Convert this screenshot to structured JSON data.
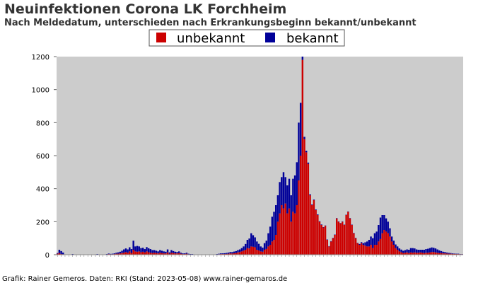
{
  "chart_data": {
    "type": "bar",
    "stacked": true,
    "title": "Neuinfektionen Corona LK Forchheim",
    "subtitle": "Nach Meldedatum, unterschieden nach Erkrankungsbeginn bekannt/unbekannt",
    "xlabel": "",
    "ylabel": "",
    "ylim": [
      0,
      1200
    ],
    "yticks": [
      0,
      200,
      400,
      600,
      800,
      1000,
      1200
    ],
    "grid": false,
    "legend_position": "top-center",
    "credit": "Grafik: Rainer Gemeros. Daten: RKI (Stand: 2023-05-08) www.rainer-gemaros.de",
    "x_note": "one bar per reporting week, roughly 2020-03 to 2023-05; x tick labels are rotated dates and not legible",
    "series": [
      {
        "name": "unbekannt",
        "color": "#cc0000",
        "values": [
          6,
          10,
          4,
          3,
          0,
          0,
          0,
          0,
          2,
          0,
          0,
          0,
          0,
          0,
          0,
          0,
          0,
          0,
          0,
          0,
          0,
          2,
          0,
          0,
          0,
          0,
          2,
          4,
          3,
          3,
          4,
          6,
          6,
          8,
          10,
          12,
          16,
          12,
          20,
          10,
          30,
          20,
          18,
          20,
          15,
          18,
          14,
          20,
          15,
          12,
          10,
          12,
          10,
          8,
          12,
          10,
          8,
          8,
          14,
          6,
          12,
          10,
          8,
          8,
          10,
          6,
          4,
          4,
          6,
          3,
          2,
          2,
          0,
          0,
          0,
          0,
          0,
          0,
          0,
          0,
          0,
          0,
          0,
          0,
          2,
          3,
          4,
          4,
          4,
          5,
          6,
          8,
          7,
          9,
          10,
          14,
          16,
          20,
          25,
          30,
          40,
          38,
          50,
          48,
          45,
          30,
          26,
          20,
          18,
          30,
          35,
          50,
          60,
          80,
          90,
          120,
          200,
          250,
          300,
          280,
          310,
          250,
          280,
          200,
          260,
          250,
          300,
          450,
          600,
          1180,
          700,
          620,
          550,
          360,
          300,
          330,
          270,
          240,
          200,
          180,
          165,
          175,
          90,
          50,
          80,
          100,
          120,
          220,
          200,
          190,
          200,
          180,
          240,
          260,
          220,
          180,
          130,
          100,
          70,
          60,
          70,
          60,
          55,
          50,
          50,
          60,
          40,
          60,
          60,
          80,
          95,
          130,
          150,
          140,
          130,
          110,
          80,
          60,
          40,
          30,
          20,
          15,
          10,
          12,
          14,
          10,
          14,
          12,
          14,
          12,
          12,
          14,
          12,
          10,
          12,
          12,
          14,
          16,
          16,
          14,
          12,
          10,
          10,
          8,
          8,
          7,
          6,
          6,
          5,
          5,
          4,
          4,
          3,
          3
        ]
      },
      {
        "name": "bekannt",
        "color": "#000099",
        "values": [
          4,
          20,
          18,
          10,
          0,
          0,
          0,
          0,
          2,
          0,
          0,
          0,
          0,
          0,
          0,
          0,
          0,
          0,
          0,
          0,
          0,
          2,
          0,
          0,
          0,
          0,
          2,
          3,
          2,
          3,
          4,
          6,
          8,
          10,
          14,
          20,
          22,
          20,
          25,
          24,
          55,
          30,
          35,
          30,
          25,
          24,
          20,
          26,
          24,
          22,
          18,
          16,
          14,
          12,
          16,
          14,
          12,
          10,
          18,
          8,
          16,
          12,
          10,
          8,
          10,
          6,
          4,
          4,
          6,
          3,
          2,
          2,
          0,
          0,
          0,
          0,
          0,
          0,
          0,
          0,
          0,
          0,
          0,
          0,
          2,
          3,
          4,
          4,
          5,
          6,
          7,
          8,
          9,
          10,
          12,
          14,
          16,
          20,
          25,
          35,
          50,
          60,
          80,
          70,
          60,
          50,
          40,
          30,
          25,
          40,
          50,
          80,
          110,
          150,
          170,
          180,
          160,
          190,
          170,
          220,
          160,
          170,
          180,
          160,
          200,
          230,
          260,
          350,
          320,
          20,
          14,
          10,
          8,
          6,
          4,
          4,
          4,
          4,
          3,
          3,
          2,
          2,
          2,
          2,
          2,
          2,
          2,
          2,
          2,
          2,
          2,
          2,
          2,
          2,
          2,
          2,
          2,
          2,
          2,
          5,
          6,
          10,
          20,
          30,
          40,
          50,
          60,
          70,
          80,
          100,
          130,
          110,
          90,
          80,
          70,
          50,
          30,
          25,
          22,
          20,
          18,
          16,
          14,
          16,
          18,
          20,
          26,
          28,
          24,
          20,
          18,
          16,
          18,
          20,
          22,
          24,
          26,
          28,
          26,
          24,
          20,
          16,
          12,
          10,
          8,
          6,
          5,
          4,
          3,
          2,
          2,
          2,
          1,
          1
        ]
      }
    ]
  }
}
